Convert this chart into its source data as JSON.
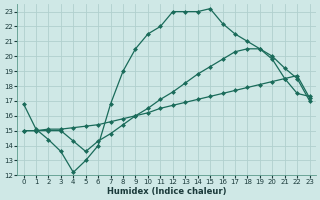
{
  "xlabel": "Humidex (Indice chaleur)",
  "xlim": [
    -0.5,
    23.5
  ],
  "ylim": [
    12,
    23.5
  ],
  "yticks": [
    12,
    13,
    14,
    15,
    16,
    17,
    18,
    19,
    20,
    21,
    22,
    23
  ],
  "xticks": [
    0,
    1,
    2,
    3,
    4,
    5,
    6,
    7,
    8,
    9,
    10,
    11,
    12,
    13,
    14,
    15,
    16,
    17,
    18,
    19,
    20,
    21,
    22,
    23
  ],
  "bg_color": "#cfe8e6",
  "grid_color": "#b0d0ce",
  "line_color": "#1a6b5a",
  "line1_x": [
    0,
    1,
    2,
    3,
    4,
    5,
    6,
    7,
    8,
    9,
    10,
    11,
    12,
    13,
    14,
    15,
    16,
    17,
    18,
    19,
    20,
    21,
    22,
    23
  ],
  "line1_y": [
    16.8,
    15.1,
    14.4,
    13.6,
    12.2,
    13.0,
    14.0,
    16.8,
    19.0,
    20.5,
    21.5,
    22.0,
    23.0,
    23.0,
    23.0,
    23.2,
    22.2,
    21.5,
    21.0,
    20.5,
    20.0,
    19.2,
    18.5,
    17.0
  ],
  "line2_x": [
    0,
    1,
    2,
    3,
    4,
    5,
    6,
    7,
    8,
    9,
    10,
    11,
    12,
    13,
    14,
    15,
    16,
    17,
    18,
    19,
    20,
    21,
    22,
    23
  ],
  "line2_y": [
    15.0,
    15.0,
    15.1,
    15.1,
    15.2,
    15.3,
    15.4,
    15.6,
    15.8,
    16.0,
    16.2,
    16.5,
    16.7,
    16.9,
    17.1,
    17.3,
    17.5,
    17.7,
    17.9,
    18.1,
    18.3,
    18.5,
    18.7,
    17.2
  ],
  "line3_x": [
    0,
    1,
    2,
    3,
    4,
    5,
    6,
    7,
    8,
    9,
    10,
    11,
    12,
    13,
    14,
    15,
    16,
    17,
    18,
    19,
    20,
    21,
    22,
    23
  ],
  "line3_y": [
    15.0,
    15.0,
    15.0,
    15.0,
    14.3,
    13.6,
    14.3,
    14.8,
    15.4,
    16.0,
    16.5,
    17.1,
    17.6,
    18.2,
    18.8,
    19.3,
    19.8,
    20.3,
    20.5,
    20.5,
    19.8,
    18.5,
    17.5,
    17.3
  ],
  "marker": "D",
  "markersize": 2.5,
  "linewidth": 0.9
}
